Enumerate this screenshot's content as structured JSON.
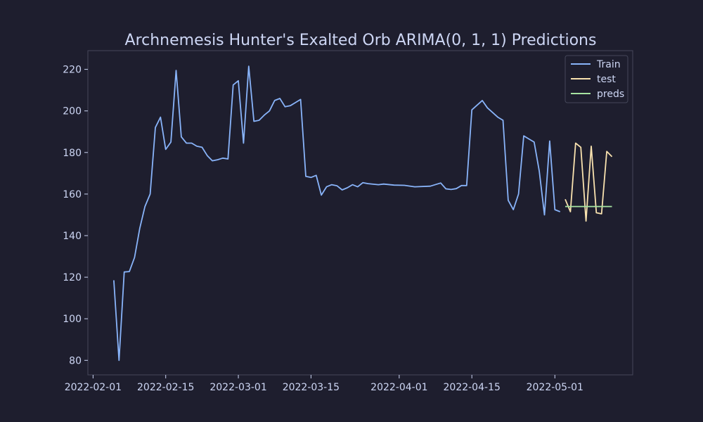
{
  "chart_data": {
    "type": "line",
    "title": "Archnemesis Hunter's Exalted Orb ARIMA(0, 1, 1) Predictions",
    "xlabel": "",
    "ylabel": "",
    "x_axis_type": "date",
    "xlim": [
      "2022-01-31",
      "2022-05-16"
    ],
    "ylim": [
      73,
      229
    ],
    "x_ticks": [
      "2022-02-01",
      "2022-02-15",
      "2022-03-01",
      "2022-03-15",
      "2022-04-01",
      "2022-04-15",
      "2022-05-01"
    ],
    "y_ticks": [
      80,
      100,
      120,
      140,
      160,
      180,
      200,
      220
    ],
    "grid": false,
    "legend": "top-right",
    "colors": {
      "background": "#1e1e2e",
      "text": "#cdd6f4",
      "axes": "#45475a",
      "Train": "#89b4fa",
      "test": "#f9e2af",
      "preds": "#a6e3a1"
    },
    "series": [
      {
        "name": "Train",
        "points": [
          [
            "2022-02-05",
            118.5
          ],
          [
            "2022-02-06",
            80
          ],
          [
            "2022-02-07",
            122.5
          ],
          [
            "2022-02-08",
            122.7
          ],
          [
            "2022-02-09",
            129.5
          ],
          [
            "2022-02-10",
            143.5
          ],
          [
            "2022-02-11",
            154
          ],
          [
            "2022-02-12",
            160
          ],
          [
            "2022-02-13",
            192
          ],
          [
            "2022-02-14",
            197
          ],
          [
            "2022-02-15",
            181.5
          ],
          [
            "2022-02-16",
            185
          ],
          [
            "2022-02-17",
            219.5
          ],
          [
            "2022-02-18",
            187.5
          ],
          [
            "2022-02-19",
            184.5
          ],
          [
            "2022-02-20",
            184.5
          ],
          [
            "2022-02-21",
            183
          ],
          [
            "2022-02-22",
            182.5
          ],
          [
            "2022-02-23",
            178.5
          ],
          [
            "2022-02-24",
            176
          ],
          [
            "2022-02-25",
            176.5
          ],
          [
            "2022-02-26",
            177.3
          ],
          [
            "2022-02-27",
            176.9
          ],
          [
            "2022-02-28",
            212.5
          ],
          [
            "2022-03-01",
            214.5
          ],
          [
            "2022-03-02",
            184.5
          ],
          [
            "2022-03-03",
            221.5
          ],
          [
            "2022-03-04",
            195
          ],
          [
            "2022-03-05",
            195.5
          ],
          [
            "2022-03-06",
            198
          ],
          [
            "2022-03-07",
            200
          ],
          [
            "2022-03-08",
            205
          ],
          [
            "2022-03-09",
            206
          ],
          [
            "2022-03-10",
            202
          ],
          [
            "2022-03-11",
            202.5
          ],
          [
            "2022-03-12",
            204
          ],
          [
            "2022-03-13",
            205.5
          ],
          [
            "2022-03-14",
            168.5
          ],
          [
            "2022-03-15",
            168
          ],
          [
            "2022-03-16",
            169
          ],
          [
            "2022-03-17",
            159.5
          ],
          [
            "2022-03-18",
            163.5
          ],
          [
            "2022-03-19",
            164.5
          ],
          [
            "2022-03-20",
            164
          ],
          [
            "2022-03-21",
            162
          ],
          [
            "2022-03-22",
            163
          ],
          [
            "2022-03-23",
            164.5
          ],
          [
            "2022-03-24",
            163.5
          ],
          [
            "2022-03-25",
            165.5
          ],
          [
            "2022-03-26",
            165
          ],
          [
            "2022-03-28",
            164.5
          ],
          [
            "2022-03-29",
            164.8
          ],
          [
            "2022-03-31",
            164.3
          ],
          [
            "2022-04-02",
            164.2
          ],
          [
            "2022-04-04",
            163.5
          ],
          [
            "2022-04-07",
            163.8
          ],
          [
            "2022-04-09",
            165.3
          ],
          [
            "2022-04-10",
            162.5
          ],
          [
            "2022-04-11",
            162.2
          ],
          [
            "2022-04-12",
            162.6
          ],
          [
            "2022-04-13",
            164.1
          ],
          [
            "2022-04-14",
            164.1
          ],
          [
            "2022-04-15",
            200.5
          ],
          [
            "2022-04-17",
            205
          ],
          [
            "2022-04-18",
            201.5
          ],
          [
            "2022-04-20",
            197
          ],
          [
            "2022-04-21",
            195.5
          ],
          [
            "2022-04-22",
            157
          ],
          [
            "2022-04-23",
            152.5
          ],
          [
            "2022-04-24",
            160
          ],
          [
            "2022-04-25",
            188
          ],
          [
            "2022-04-26",
            186.5
          ],
          [
            "2022-04-27",
            185
          ],
          [
            "2022-04-28",
            171
          ],
          [
            "2022-04-29",
            150
          ],
          [
            "2022-04-30",
            185.5
          ],
          [
            "2022-05-01",
            152.5
          ],
          [
            "2022-05-02",
            151.5
          ]
        ]
      },
      {
        "name": "test",
        "points": [
          [
            "2022-05-03",
            157.5
          ],
          [
            "2022-05-04",
            151.5
          ],
          [
            "2022-05-05",
            184.5
          ],
          [
            "2022-05-06",
            182.5
          ],
          [
            "2022-05-07",
            147
          ],
          [
            "2022-05-08",
            183
          ],
          [
            "2022-05-09",
            151
          ],
          [
            "2022-05-10",
            150.5
          ],
          [
            "2022-05-11",
            180.5
          ],
          [
            "2022-05-12",
            178
          ]
        ]
      },
      {
        "name": "preds",
        "points": [
          [
            "2022-05-03",
            154
          ],
          [
            "2022-05-04",
            154
          ],
          [
            "2022-05-05",
            154
          ],
          [
            "2022-05-06",
            154
          ],
          [
            "2022-05-07",
            154
          ],
          [
            "2022-05-08",
            154
          ],
          [
            "2022-05-09",
            154
          ],
          [
            "2022-05-10",
            154
          ],
          [
            "2022-05-11",
            154
          ],
          [
            "2022-05-12",
            154
          ]
        ]
      }
    ]
  }
}
